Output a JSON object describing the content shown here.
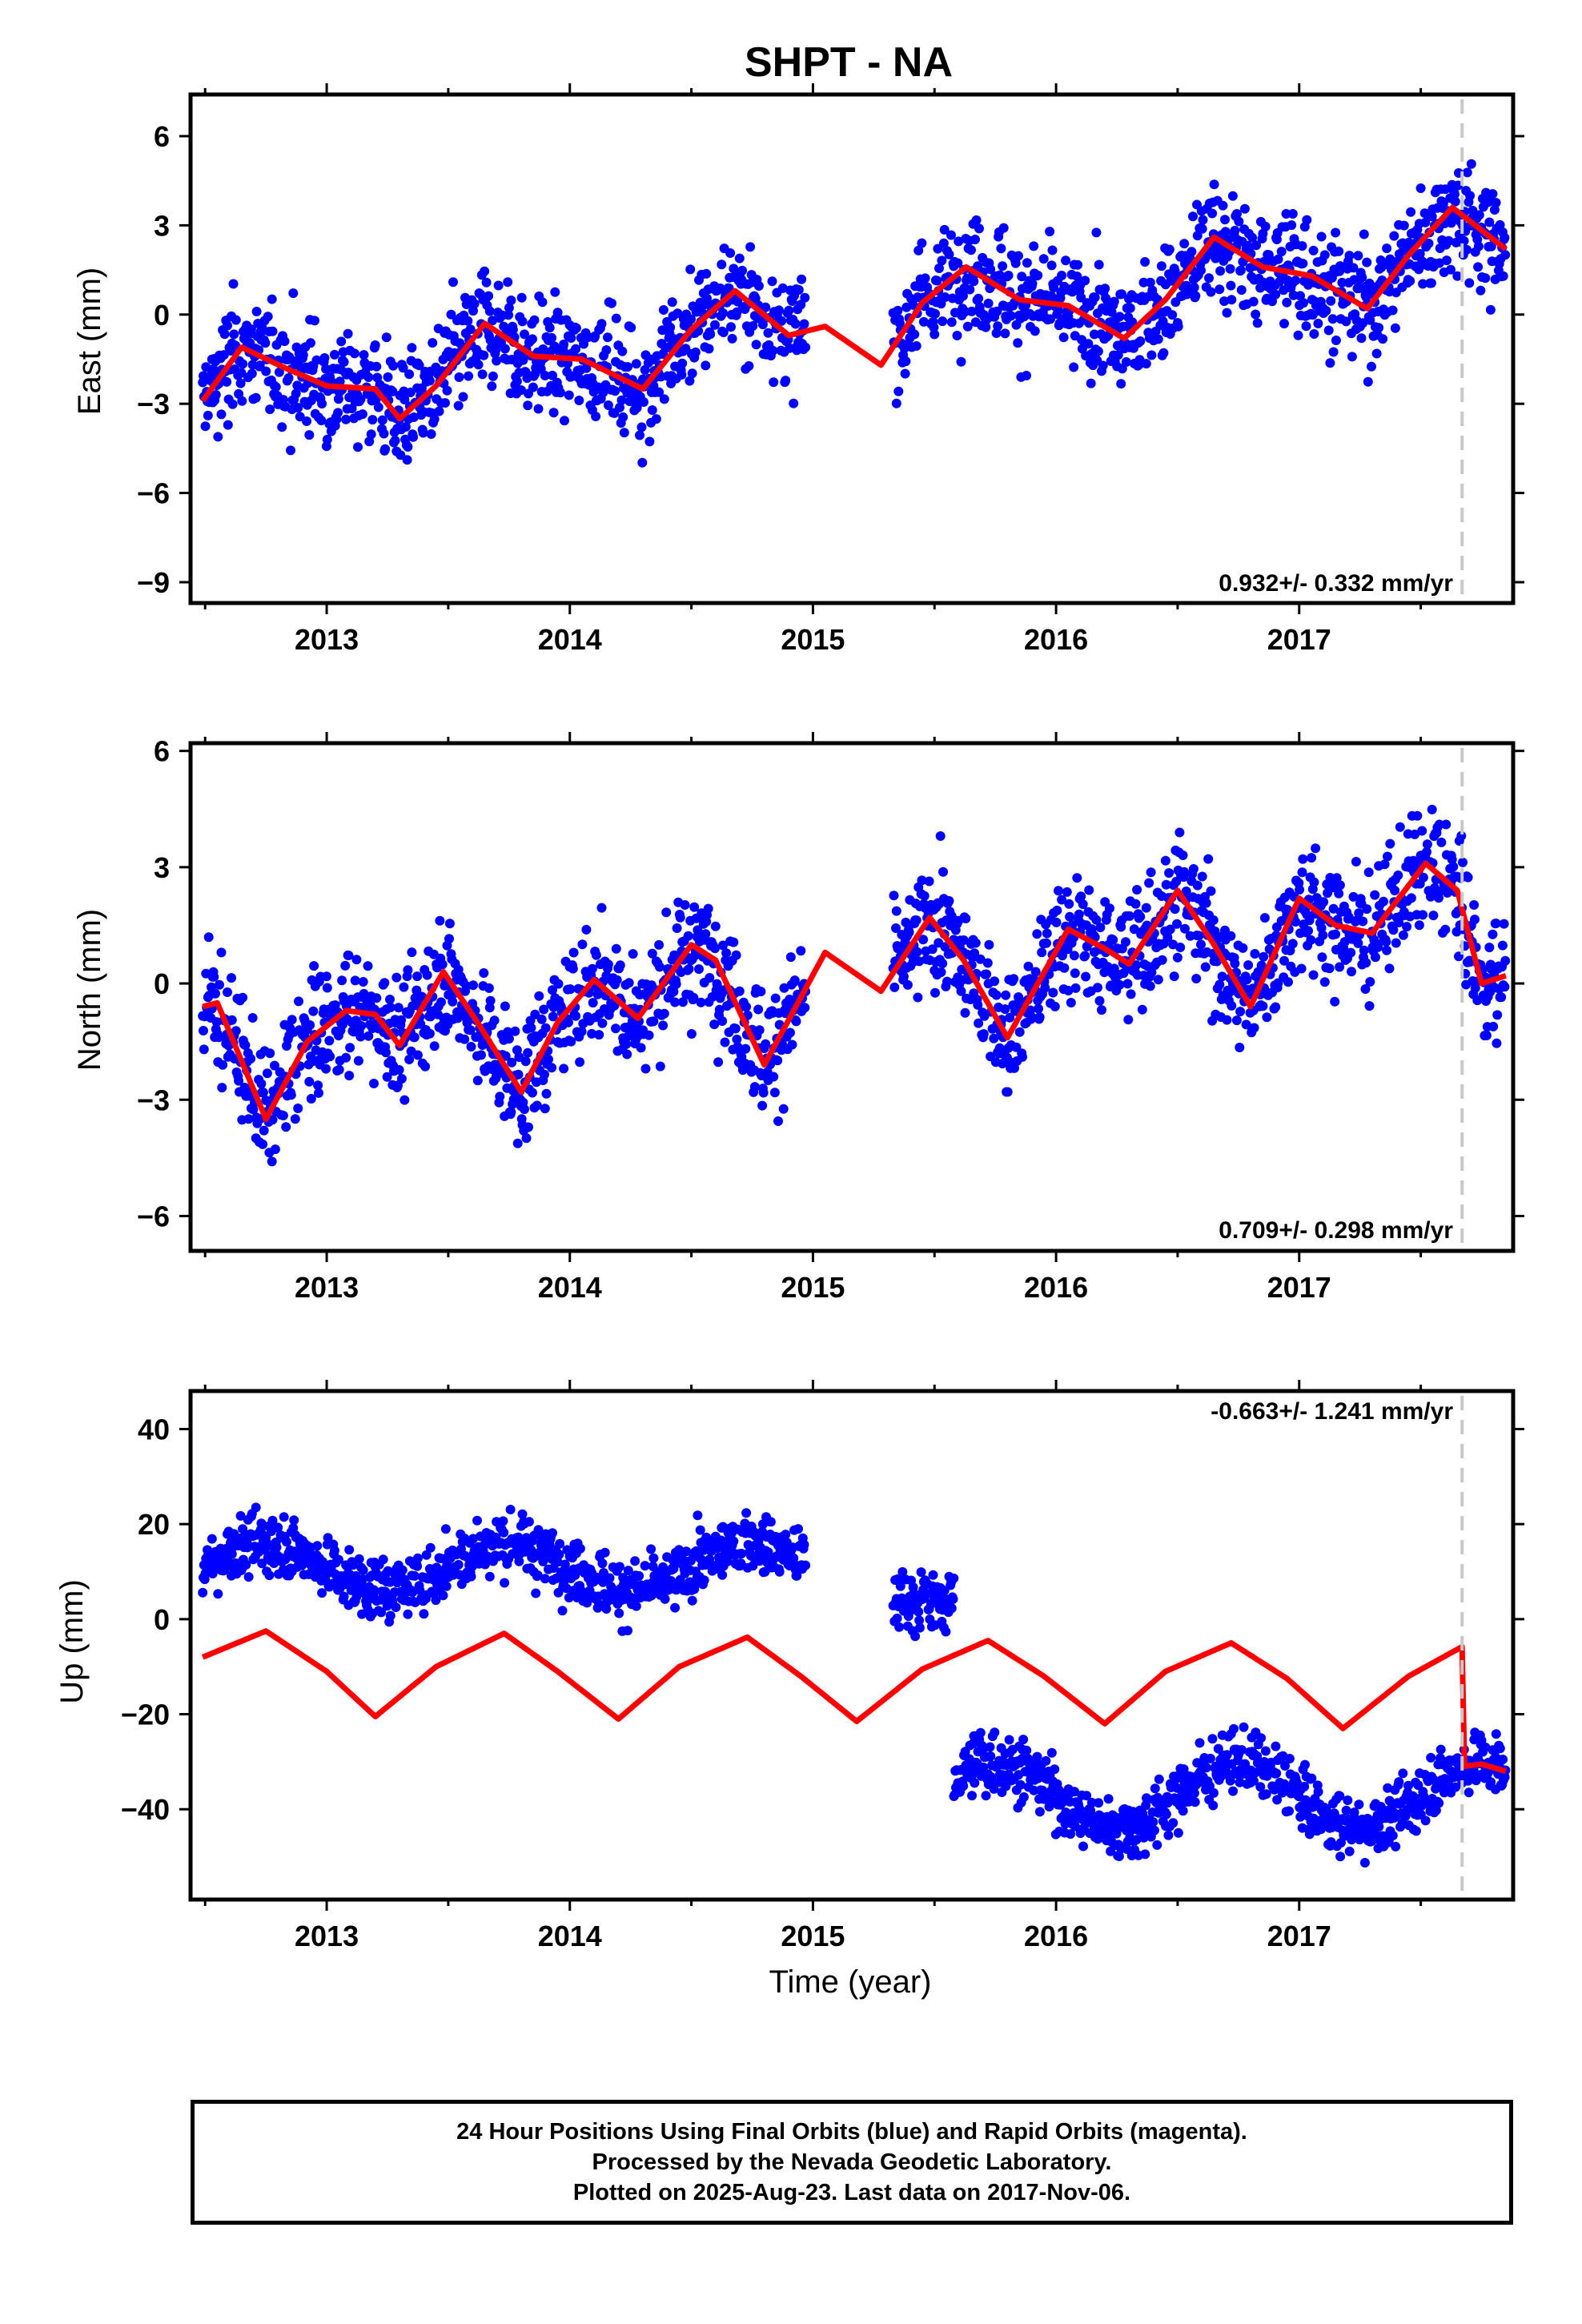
{
  "title": "SHPT - NA",
  "xlabel": "Time (year)",
  "footer": {
    "line1": "24 Hour Positions Using Final Orbits (blue) and Rapid Orbits (magenta).",
    "line2": "Processed by the Nevada Geodetic Laboratory.",
    "line3": "Plotted on 2025-Aug-23. Last data on 2017-Nov-06."
  },
  "colors": {
    "final_points": "#0000ff",
    "model_line": "#ff0000",
    "equipment_change_line": "#c8c8c8",
    "frame": "#000000"
  },
  "chart_data": [
    {
      "type": "scatter",
      "title": "SHPT - NA",
      "ylabel": "East (mm)",
      "xlim": [
        2012.44,
        2017.88
      ],
      "ylim": [
        -9.7,
        7.4
      ],
      "yticks": [
        -9,
        -6,
        -3,
        0,
        3,
        6
      ],
      "xticks": [
        2013,
        2014,
        2015,
        2016,
        2017
      ],
      "rate_text": "0.932+/- 0.332 mm/yr",
      "rate_position": "bottom-right",
      "vertical_marker_x": 2017.67,
      "series": [
        {
          "kind": "points",
          "spread": 1.35,
          "segments": [
            [
              2012.49,
              2014.97
            ],
            [
              2015.33,
              2017.85
            ]
          ]
        },
        {
          "kind": "model",
          "x": [
            2012.49,
            2012.65,
            2012.83,
            2013.0,
            2013.2,
            2013.3,
            2013.45,
            2013.65,
            2013.85,
            2014.05,
            2014.3,
            2014.5,
            2014.68,
            2014.9,
            2015.05,
            2015.28,
            2015.45,
            2015.63,
            2015.85,
            2016.05,
            2016.28,
            2016.45,
            2016.65,
            2016.85,
            2017.05,
            2017.28,
            2017.45,
            2017.63,
            2017.85
          ],
          "y": [
            -2.9,
            -1.1,
            -1.8,
            -2.4,
            -2.5,
            -3.5,
            -2.4,
            -0.3,
            -1.4,
            -1.5,
            -2.5,
            -0.5,
            0.8,
            -0.7,
            -0.4,
            -1.7,
            0.4,
            1.6,
            0.5,
            0.3,
            -0.8,
            0.5,
            2.6,
            1.6,
            1.3,
            0.2,
            2.0,
            3.6,
            2.2
          ]
        }
      ]
    },
    {
      "type": "scatter",
      "ylabel": "North (mm)",
      "xlim": [
        2012.44,
        2017.88
      ],
      "ylim": [
        -6.9,
        6.2
      ],
      "yticks": [
        -6,
        -3,
        0,
        3,
        6
      ],
      "xticks": [
        2013,
        2014,
        2015,
        2016,
        2017
      ],
      "rate_text": "0.709+/- 0.298 mm/yr",
      "rate_position": "bottom-right",
      "vertical_marker_x": 2017.67,
      "series": [
        {
          "kind": "points",
          "spread": 1.1,
          "segments": [
            [
              2012.49,
              2014.97
            ],
            [
              2015.33,
              2017.85
            ]
          ]
        },
        {
          "kind": "model",
          "x": [
            2012.49,
            2012.55,
            2012.75,
            2012.92,
            2013.08,
            2013.2,
            2013.3,
            2013.48,
            2013.62,
            2013.8,
            2013.95,
            2014.1,
            2014.28,
            2014.5,
            2014.6,
            2014.8,
            2015.05,
            2015.28,
            2015.48,
            2015.62,
            2015.8,
            2016.05,
            2016.2,
            2016.3,
            2016.5,
            2016.65,
            2016.8,
            2017.0,
            2017.15,
            2017.3,
            2017.52,
            2017.65,
            2017.75,
            2017.85
          ],
          "y": [
            -0.6,
            -0.5,
            -3.5,
            -1.5,
            -0.7,
            -0.8,
            -1.6,
            0.3,
            -1.0,
            -2.8,
            -1.0,
            0.1,
            -0.9,
            1.0,
            0.6,
            -2.1,
            0.8,
            -0.2,
            1.7,
            0.6,
            -1.4,
            1.4,
            0.9,
            0.5,
            2.4,
            1.0,
            -0.6,
            2.2,
            1.5,
            1.3,
            3.1,
            2.4,
            0.0,
            0.2
          ]
        }
      ]
    },
    {
      "type": "scatter",
      "ylabel": "Up (mm)",
      "xlim": [
        2012.44,
        2017.88
      ],
      "ylim": [
        -59,
        48
      ],
      "yticks": [
        -40,
        -20,
        0,
        20,
        40
      ],
      "xticks": [
        2013,
        2014,
        2015,
        2016,
        2017
      ],
      "rate_text": "-0.663+/- 1.241 mm/yr",
      "rate_position": "top-right",
      "vertical_marker_x": 2017.67,
      "series": [
        {
          "kind": "points",
          "spread": 4.5,
          "segments": [
            [
              2012.49,
              2014.97
            ],
            [
              2015.33,
              2015.58
            ],
            [
              2015.58,
              2017.85
            ]
          ]
        },
        {
          "kind": "model",
          "x": [
            2012.49,
            2012.75,
            2013.0,
            2013.2,
            2013.45,
            2013.73,
            2013.95,
            2014.2,
            2014.45,
            2014.73,
            2014.95,
            2015.18,
            2015.45,
            2015.72,
            2015.95,
            2016.2,
            2016.45,
            2016.72,
            2016.95,
            2017.18,
            2017.45,
            2017.67,
            2017.67,
            2017.75,
            2017.85
          ],
          "y": [
            -8,
            -2.5,
            -11,
            -20.5,
            -10,
            -3,
            -11,
            -21,
            -10,
            -3.8,
            -12,
            -21.5,
            -10.5,
            -4.5,
            -12,
            -22,
            -11,
            -5,
            -12.5,
            -23,
            -12,
            -5.8,
            -31,
            -30.5,
            -32
          ]
        }
      ]
    }
  ]
}
